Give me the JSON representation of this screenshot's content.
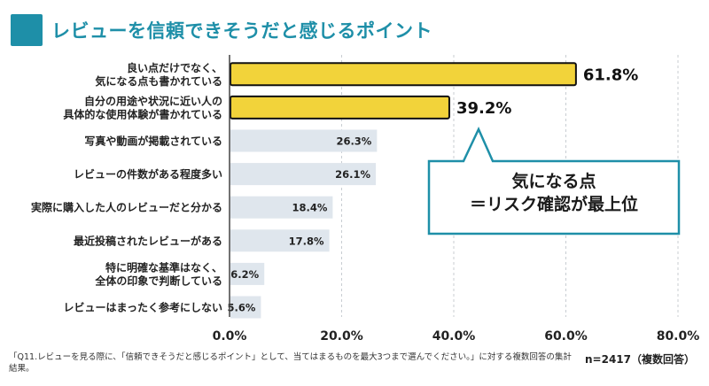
{
  "title": "レビューを信頼できそうだと感じるポイント",
  "callout": {
    "line1": "気になる点",
    "line2": "＝リスク確認が最上位"
  },
  "footnote": "「Q11.レビューを見る際に、「信頼できそうだと感じるポイント」として、当てはまるものを最大3つまで選んでください。」に対する複数回答の集計結果。",
  "sample": "n=2417（複数回答）",
  "colors": {
    "accent": "#1e8fa8",
    "highlight_bar": "#f2d33a",
    "highlight_border": "#111111",
    "normal_bar": "#dfe6ed",
    "grid": "#c8cdd2"
  },
  "chart_data": {
    "type": "bar",
    "orientation": "horizontal",
    "categories": [
      [
        "良い点だけでなく、",
        "気になる点も書かれている"
      ],
      [
        "自分の用途や状況に近い人の",
        "具体的な使用体験が書かれている"
      ],
      [
        "写真や動画が掲載されている"
      ],
      [
        "レビューの件数がある程度多い"
      ],
      [
        "実際に購入した人のレビューだと分かる"
      ],
      [
        "最近投稿されたレビューがある"
      ],
      [
        "特に明確な基準はなく、",
        "全体の印象で判断している"
      ],
      [
        "レビューはまったく参考にしない"
      ]
    ],
    "values": [
      61.8,
      39.2,
      26.3,
      26.1,
      18.4,
      17.8,
      6.2,
      5.6
    ],
    "value_labels": [
      "61.8%",
      "39.2%",
      "26.3%",
      "26.1%",
      "18.4%",
      "17.8%",
      "6.2%",
      "5.6%"
    ],
    "highlighted": [
      true,
      true,
      false,
      false,
      false,
      false,
      false,
      false
    ],
    "xlim": [
      0,
      80
    ],
    "xticks": [
      0,
      20,
      40,
      60,
      80
    ],
    "xtick_labels": [
      "0.0%",
      "20.0%",
      "40.0%",
      "60.0%",
      "80.0%"
    ],
    "grid": "vertical-dashed"
  }
}
